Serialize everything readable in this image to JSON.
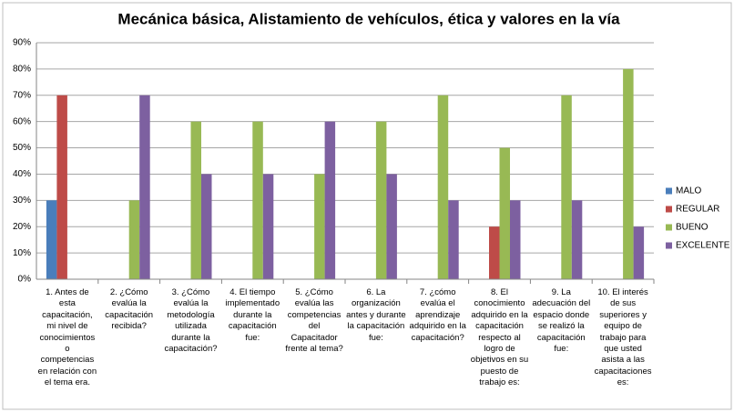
{
  "chart_data": {
    "type": "bar",
    "title": "Mecánica básica, Alistamiento de vehículos, ética y valores en la vía",
    "categories": [
      "1. Antes de esta capacitación, mi nivel de conocimientos o competencias en relación con el tema era.",
      "2. ¿Cómo evalúa la capacitación recibida?",
      "3. ¿Cómo evalúa la metodología utilizada durante la capacitación?",
      "4. El tiempo implementado durante la capacitación fue:",
      "5. ¿Cómo evalúa las competencias del Capacitador frente al tema?",
      "6. La organización antes y durante la capacitación fue:",
      "7. ¿cómo evalúa el aprendizaje adquirido en la capacitación?",
      "8. El conocimiento adquirido en la capacitación respecto al logro de objetivos en su puesto de trabajo es:",
      "9. La adecuación del espacio donde se realizó la capacitación fue:",
      "10. El interés de sus superiores y equipo de trabajo para que usted asista a las capacitaciones es:"
    ],
    "series": [
      {
        "name": "MALO",
        "color": "#4a7ebb",
        "values": [
          30,
          0,
          0,
          0,
          0,
          0,
          0,
          0,
          0,
          0
        ]
      },
      {
        "name": "REGULAR",
        "color": "#be4b48",
        "values": [
          70,
          0,
          0,
          0,
          0,
          0,
          0,
          20,
          0,
          0
        ]
      },
      {
        "name": "BUENO",
        "color": "#98b954",
        "values": [
          0,
          30,
          60,
          60,
          40,
          60,
          70,
          50,
          70,
          80
        ]
      },
      {
        "name": "EXCELENTE",
        "color": "#7d60a0",
        "values": [
          0,
          70,
          40,
          40,
          60,
          40,
          30,
          30,
          30,
          20
        ]
      }
    ],
    "ylim": [
      0,
      90
    ],
    "yticks": [
      {
        "value": 0,
        "label": "0%"
      },
      {
        "value": 10,
        "label": "10%"
      },
      {
        "value": 20,
        "label": "20%"
      },
      {
        "value": 30,
        "label": "30%"
      },
      {
        "value": 40,
        "label": "40%"
      },
      {
        "value": 50,
        "label": "50%"
      },
      {
        "value": 60,
        "label": "60%"
      },
      {
        "value": 70,
        "label": "70%"
      },
      {
        "value": 80,
        "label": "80%"
      },
      {
        "value": 90,
        "label": "90%"
      }
    ],
    "grid": true,
    "legend": "right"
  }
}
